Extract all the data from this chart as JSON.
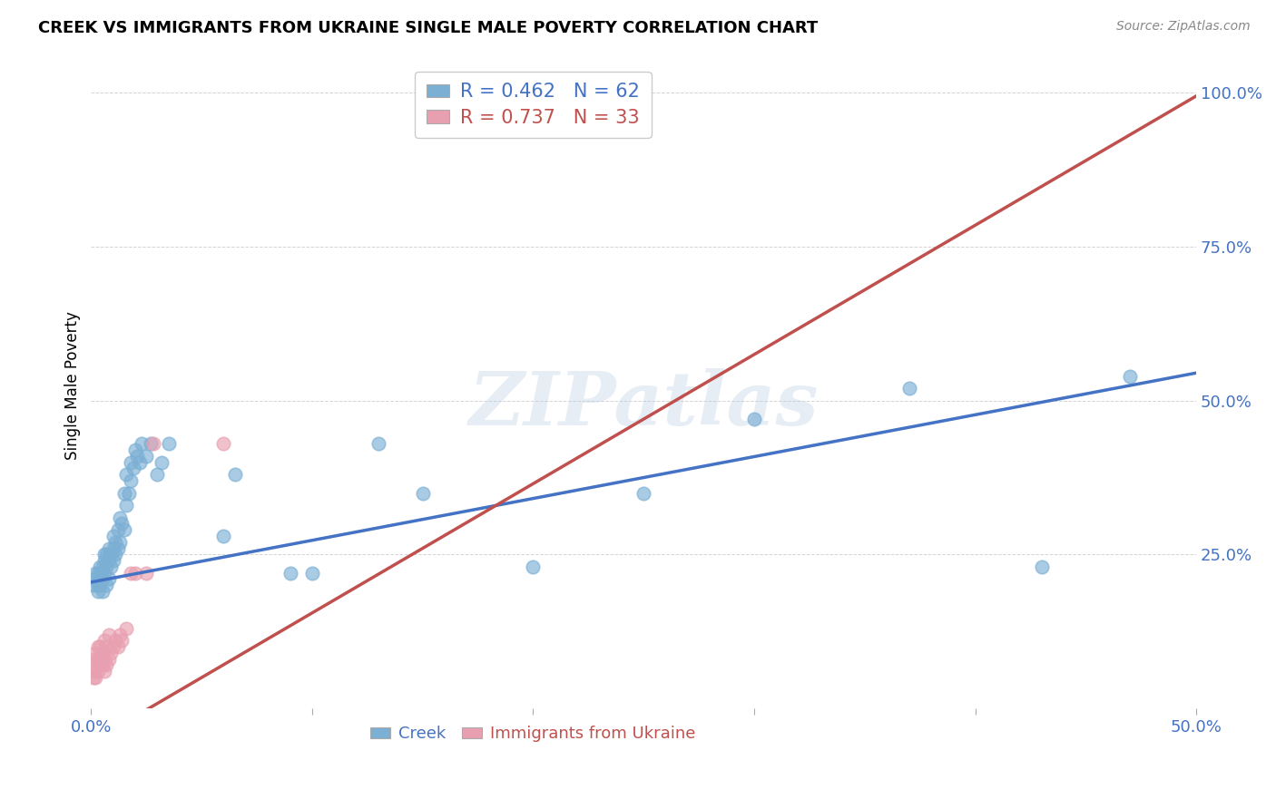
{
  "title": "CREEK VS IMMIGRANTS FROM UKRAINE SINGLE MALE POVERTY CORRELATION CHART",
  "source": "Source: ZipAtlas.com",
  "ylabel_label": "Single Male Poverty",
  "xlim": [
    0.0,
    0.5
  ],
  "ylim": [
    0.0,
    1.05
  ],
  "xtick_vals": [
    0.0,
    0.1,
    0.2,
    0.3,
    0.4,
    0.5
  ],
  "xtick_labels": [
    "0.0%",
    "",
    "",
    "",
    "",
    "50.0%"
  ],
  "ytick_vals": [
    0.25,
    0.5,
    0.75,
    1.0
  ],
  "ytick_labels": [
    "25.0%",
    "50.0%",
    "75.0%",
    "100.0%"
  ],
  "creek_color": "#7bafd4",
  "ukraine_color": "#e8a0b0",
  "creek_line_color": "#4472c4",
  "ukraine_line_color": "#c0504d",
  "tick_color": "#4472c4",
  "legend_creek_label": "R = 0.462   N = 62",
  "legend_ukraine_label": "R = 0.737   N = 33",
  "watermark": "ZIPatlas",
  "creek_intercept": 0.205,
  "creek_slope": 0.68,
  "ukraine_intercept": -0.055,
  "ukraine_slope": 2.1,
  "creek_scatter_x": [
    0.001,
    0.002,
    0.002,
    0.003,
    0.003,
    0.003,
    0.004,
    0.004,
    0.004,
    0.005,
    0.005,
    0.005,
    0.006,
    0.006,
    0.006,
    0.007,
    0.007,
    0.007,
    0.008,
    0.008,
    0.008,
    0.009,
    0.009,
    0.01,
    0.01,
    0.01,
    0.011,
    0.011,
    0.012,
    0.012,
    0.013,
    0.013,
    0.014,
    0.015,
    0.015,
    0.016,
    0.016,
    0.017,
    0.018,
    0.018,
    0.019,
    0.02,
    0.021,
    0.022,
    0.023,
    0.025,
    0.027,
    0.03,
    0.032,
    0.035,
    0.06,
    0.065,
    0.09,
    0.1,
    0.13,
    0.15,
    0.2,
    0.25,
    0.3,
    0.37,
    0.43,
    0.47
  ],
  "creek_scatter_y": [
    0.2,
    0.21,
    0.22,
    0.19,
    0.2,
    0.22,
    0.2,
    0.21,
    0.23,
    0.19,
    0.21,
    0.23,
    0.22,
    0.24,
    0.25,
    0.2,
    0.23,
    0.25,
    0.21,
    0.24,
    0.26,
    0.23,
    0.25,
    0.24,
    0.26,
    0.28,
    0.25,
    0.27,
    0.26,
    0.29,
    0.27,
    0.31,
    0.3,
    0.29,
    0.35,
    0.33,
    0.38,
    0.35,
    0.37,
    0.4,
    0.39,
    0.42,
    0.41,
    0.4,
    0.43,
    0.41,
    0.43,
    0.38,
    0.4,
    0.43,
    0.28,
    0.38,
    0.22,
    0.22,
    0.43,
    0.35,
    0.23,
    0.35,
    0.47,
    0.52,
    0.23,
    0.54
  ],
  "ukraine_scatter_x": [
    0.001,
    0.001,
    0.001,
    0.002,
    0.002,
    0.002,
    0.003,
    0.003,
    0.003,
    0.004,
    0.004,
    0.004,
    0.005,
    0.005,
    0.006,
    0.006,
    0.006,
    0.007,
    0.007,
    0.008,
    0.008,
    0.009,
    0.01,
    0.011,
    0.012,
    0.013,
    0.014,
    0.016,
    0.018,
    0.02,
    0.025,
    0.028,
    0.06
  ],
  "ukraine_scatter_y": [
    0.05,
    0.06,
    0.08,
    0.05,
    0.07,
    0.09,
    0.06,
    0.08,
    0.1,
    0.07,
    0.08,
    0.1,
    0.07,
    0.09,
    0.06,
    0.08,
    0.11,
    0.07,
    0.1,
    0.08,
    0.12,
    0.09,
    0.1,
    0.11,
    0.1,
    0.12,
    0.11,
    0.13,
    0.22,
    0.22,
    0.22,
    0.43,
    0.43
  ]
}
